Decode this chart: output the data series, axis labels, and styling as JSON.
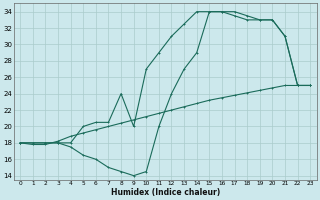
{
  "xlabel": "Humidex (Indice chaleur)",
  "background_color": "#cce8ec",
  "grid_color": "#aacccc",
  "line_color": "#1a6b5a",
  "xlim": [
    -0.5,
    23.5
  ],
  "ylim": [
    13.5,
    35
  ],
  "xticks": [
    0,
    1,
    2,
    3,
    4,
    5,
    6,
    7,
    8,
    9,
    10,
    11,
    12,
    13,
    14,
    15,
    16,
    17,
    18,
    19,
    20,
    21,
    22,
    23
  ],
  "yticks": [
    14,
    16,
    18,
    20,
    22,
    24,
    26,
    28,
    30,
    32,
    34
  ],
  "line1_x": [
    0,
    1,
    2,
    3,
    4,
    5,
    6,
    7,
    8,
    9,
    10,
    11,
    12,
    13,
    14,
    15,
    16,
    17,
    18,
    19,
    20,
    21,
    22,
    23
  ],
  "line1_y": [
    18,
    17.8,
    17.8,
    18.2,
    18.8,
    19.2,
    19.6,
    20.0,
    20.4,
    20.8,
    21.2,
    21.6,
    22.0,
    22.4,
    22.8,
    23.2,
    23.5,
    23.8,
    24.1,
    24.4,
    24.7,
    25.0,
    25.0,
    25.0
  ],
  "line2_x": [
    0,
    1,
    2,
    3,
    4,
    5,
    6,
    7,
    8,
    9,
    10,
    11,
    12,
    13,
    14,
    15,
    16,
    17,
    18,
    19,
    20,
    21,
    22,
    23
  ],
  "line2_y": [
    18,
    18,
    18,
    18,
    17.5,
    16.5,
    16,
    15,
    14.5,
    14,
    14.5,
    20,
    24,
    27,
    29,
    34,
    34,
    34,
    33.5,
    33,
    33,
    31,
    25,
    25
  ],
  "line3_x": [
    0,
    2,
    3,
    4,
    5,
    6,
    7,
    8,
    9,
    10,
    11,
    12,
    13,
    14,
    15,
    16,
    17,
    18,
    19,
    20,
    21,
    22,
    23
  ],
  "line3_y": [
    18,
    18,
    18,
    18,
    20,
    20.5,
    20.5,
    24,
    20,
    27,
    29,
    31,
    32.5,
    34,
    34,
    34,
    33.5,
    33,
    33,
    33,
    31,
    25,
    25
  ]
}
